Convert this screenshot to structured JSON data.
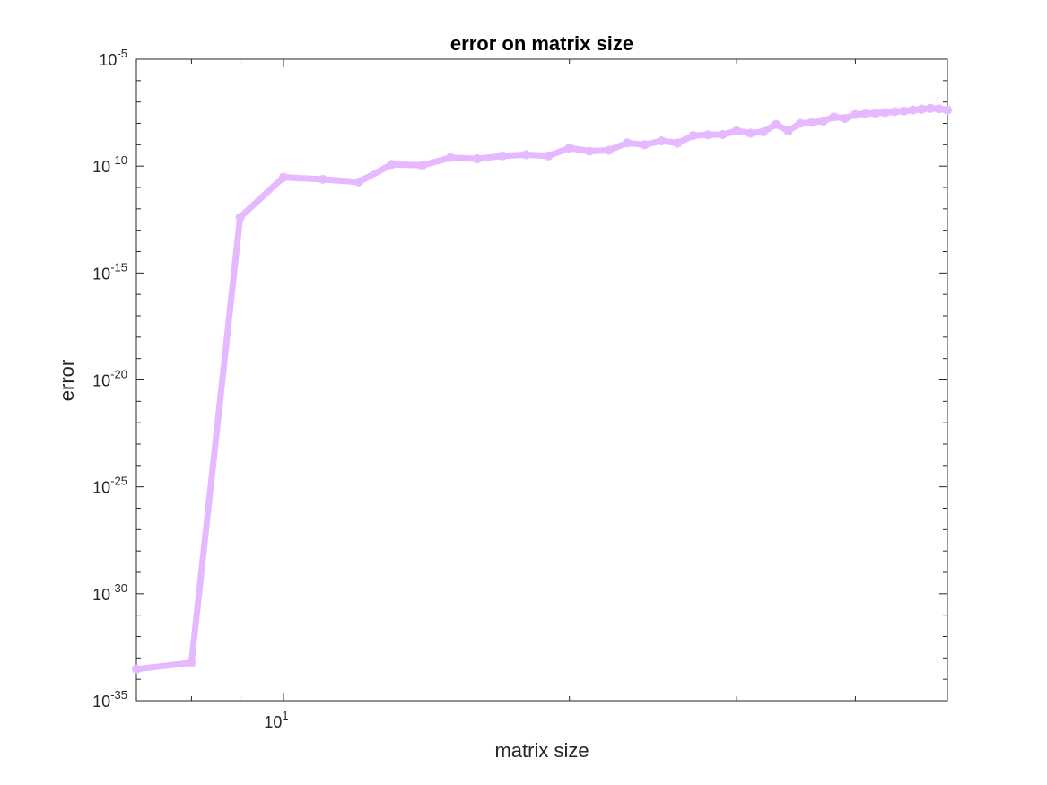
{
  "chart_data": {
    "type": "line",
    "title": "error on matrix size",
    "xlabel": "matrix size",
    "ylabel": "error",
    "xscale": "log",
    "yscale": "log",
    "xlim": [
      7,
      50
    ],
    "ylim": [
      1e-35,
      1e-05
    ],
    "grid": false,
    "legend": "none",
    "colors": {
      "line": "#e6b8ff",
      "axes": "#262626",
      "background": "#ffffff"
    },
    "marker": "asterisk",
    "xticks": [
      {
        "value": 10,
        "base": "10",
        "exp": "1"
      }
    ],
    "yticks": [
      {
        "value": 1e-35,
        "base": "10",
        "exp": "-35"
      },
      {
        "value": 1e-30,
        "base": "10",
        "exp": "-30"
      },
      {
        "value": 1e-25,
        "base": "10",
        "exp": "-25"
      },
      {
        "value": 1e-20,
        "base": "10",
        "exp": "-20"
      },
      {
        "value": 1e-15,
        "base": "10",
        "exp": "-15"
      },
      {
        "value": 1e-10,
        "base": "10",
        "exp": "-10"
      },
      {
        "value": 1e-05,
        "base": "10",
        "exp": "-5"
      }
    ],
    "series": [
      {
        "x": [
          7,
          8,
          9,
          10,
          11,
          12,
          13,
          14,
          15,
          16,
          17,
          18,
          19,
          20,
          21,
          22,
          23,
          24,
          25,
          26,
          27,
          28,
          29,
          30,
          31,
          32,
          33,
          34,
          35,
          36,
          37,
          38,
          39,
          40,
          41,
          42,
          43,
          44,
          45,
          46,
          47,
          48,
          49,
          50
        ],
        "y": [
          3e-34,
          6e-34,
          4e-13,
          3e-11,
          2.4e-11,
          1.8e-11,
          1.2e-10,
          1.1e-10,
          2.5e-10,
          2.2e-10,
          3e-10,
          3.4e-10,
          3e-10,
          7e-10,
          5e-10,
          5.5e-10,
          1.2e-09,
          1e-09,
          1.5e-09,
          1.2e-09,
          2.7e-09,
          2.9e-09,
          3e-09,
          4.5e-09,
          3.5e-09,
          4e-09,
          9e-09,
          4.5e-09,
          1e-08,
          1.1e-08,
          1.3e-08,
          2e-08,
          1.7e-08,
          2.6e-08,
          2.8e-08,
          3e-08,
          3.2e-08,
          3.5e-08,
          3.8e-08,
          4.2e-08,
          4.6e-08,
          5e-08,
          4.8e-08,
          4.2e-08
        ]
      }
    ]
  }
}
